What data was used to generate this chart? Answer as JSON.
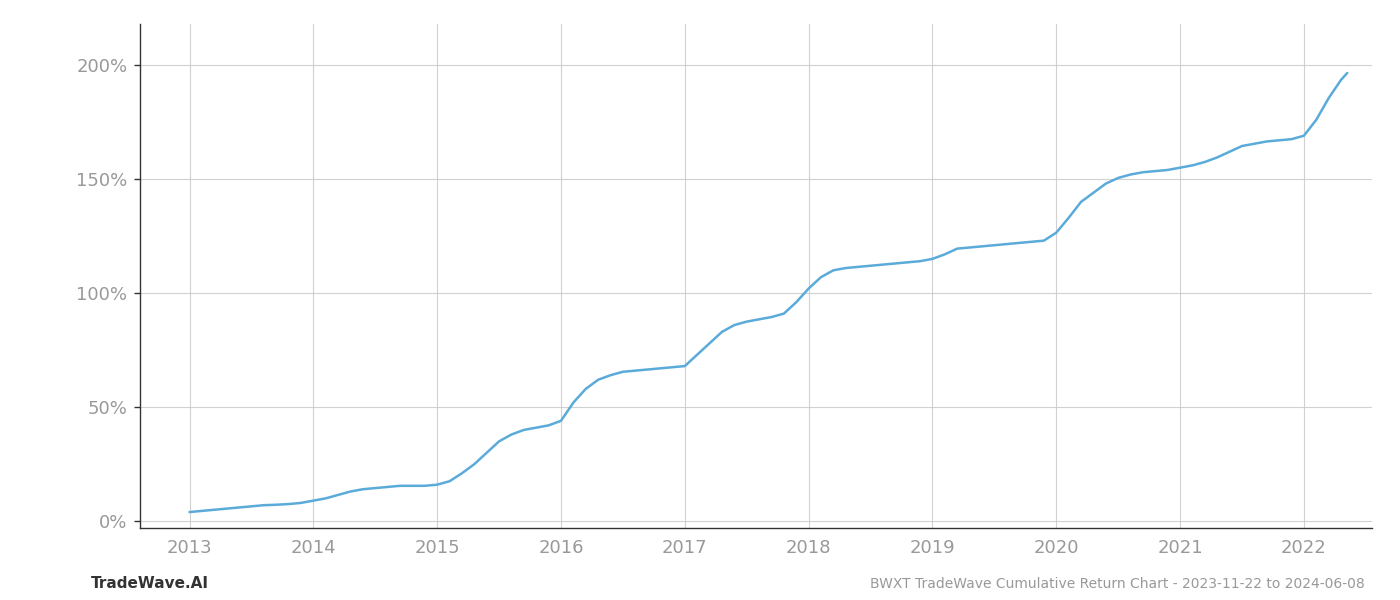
{
  "title": "",
  "xlabel": "",
  "ylabel": "",
  "line_color": "#5aabda",
  "line_width": 1.8,
  "background_color": "#ffffff",
  "grid_color": "#cccccc",
  "axis_color": "#333333",
  "tick_color": "#999999",
  "footer_left": "TradeWave.AI",
  "footer_right": "BWXT TradeWave Cumulative Return Chart - 2023-11-22 to 2024-06-08",
  "xlim": [
    2012.6,
    2022.55
  ],
  "ylim": [
    -0.03,
    2.18
  ],
  "yticks": [
    0.0,
    0.5,
    1.0,
    1.5,
    2.0
  ],
  "ytick_labels": [
    "0%",
    "50%",
    "100%",
    "150%",
    "200%"
  ],
  "xticks": [
    2013,
    2014,
    2015,
    2016,
    2017,
    2018,
    2019,
    2020,
    2021,
    2022
  ],
  "x_data": [
    2013.0,
    2013.1,
    2013.2,
    2013.3,
    2013.4,
    2013.5,
    2013.6,
    2013.7,
    2013.8,
    2013.9,
    2014.0,
    2014.1,
    2014.2,
    2014.3,
    2014.4,
    2014.5,
    2014.6,
    2014.7,
    2014.8,
    2014.9,
    2015.0,
    2015.1,
    2015.2,
    2015.3,
    2015.4,
    2015.5,
    2015.6,
    2015.7,
    2015.8,
    2015.9,
    2016.0,
    2016.1,
    2016.2,
    2016.3,
    2016.4,
    2016.5,
    2016.6,
    2016.7,
    2016.8,
    2016.9,
    2017.0,
    2017.1,
    2017.2,
    2017.3,
    2017.4,
    2017.5,
    2017.6,
    2017.7,
    2017.8,
    2017.9,
    2018.0,
    2018.1,
    2018.2,
    2018.3,
    2018.4,
    2018.5,
    2018.6,
    2018.7,
    2018.8,
    2018.9,
    2019.0,
    2019.1,
    2019.2,
    2019.3,
    2019.4,
    2019.5,
    2019.6,
    2019.7,
    2019.8,
    2019.9,
    2020.0,
    2020.1,
    2020.2,
    2020.3,
    2020.4,
    2020.5,
    2020.6,
    2020.7,
    2020.8,
    2020.9,
    2021.0,
    2021.1,
    2021.2,
    2021.3,
    2021.4,
    2021.5,
    2021.6,
    2021.7,
    2021.8,
    2021.9,
    2022.0,
    2022.1,
    2022.2,
    2022.3,
    2022.35
  ],
  "y_data": [
    0.04,
    0.045,
    0.05,
    0.055,
    0.06,
    0.065,
    0.07,
    0.072,
    0.075,
    0.08,
    0.09,
    0.1,
    0.115,
    0.13,
    0.14,
    0.145,
    0.15,
    0.155,
    0.155,
    0.155,
    0.16,
    0.175,
    0.21,
    0.25,
    0.3,
    0.35,
    0.38,
    0.4,
    0.41,
    0.42,
    0.44,
    0.52,
    0.58,
    0.62,
    0.64,
    0.655,
    0.66,
    0.665,
    0.67,
    0.675,
    0.68,
    0.73,
    0.78,
    0.83,
    0.86,
    0.875,
    0.885,
    0.895,
    0.91,
    0.96,
    1.02,
    1.07,
    1.1,
    1.11,
    1.115,
    1.12,
    1.125,
    1.13,
    1.135,
    1.14,
    1.15,
    1.17,
    1.195,
    1.2,
    1.205,
    1.21,
    1.215,
    1.22,
    1.225,
    1.23,
    1.265,
    1.33,
    1.4,
    1.44,
    1.48,
    1.505,
    1.52,
    1.53,
    1.535,
    1.54,
    1.55,
    1.56,
    1.575,
    1.595,
    1.62,
    1.645,
    1.655,
    1.665,
    1.67,
    1.675,
    1.69,
    1.76,
    1.855,
    1.935,
    1.965
  ]
}
